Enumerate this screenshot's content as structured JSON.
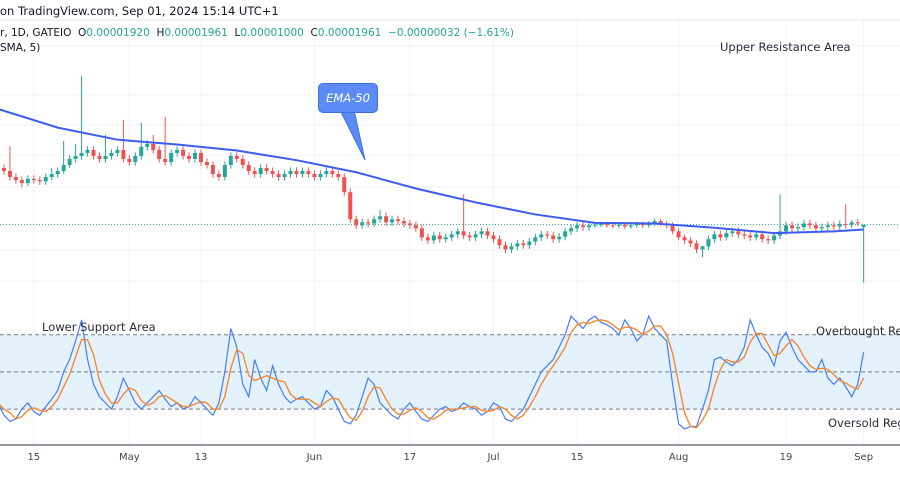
{
  "header": {
    "source_text": "on TradingView.com, Sep 01, 2024 15:14 UTC+1"
  },
  "legend": {
    "symbol_text": "r, 1D, GATEIO",
    "o_label": "O",
    "o_value": "0.00001920",
    "h_label": "H",
    "h_value": "0.00001961",
    "l_label": "L",
    "l_value": "0.00001000",
    "c_label": "C",
    "c_value": "0.00001961",
    "change": "−0.00000032 (−1.61%)",
    "indicator_text": "SMA, 5)"
  },
  "annotations": {
    "upper": "Upper Resistance Area",
    "lower": "Lower Support Area",
    "overbought": "Overbought Regi",
    "oversold": "Oversold Regi",
    "ema_callout": "EMA-50"
  },
  "colors": {
    "up": "#26a69a",
    "down": "#ef5350",
    "ema": "#3d5cf0",
    "stoch_k": "#4a7cf7",
    "stoch_d": "#f5892f",
    "band": "#e3f2fd",
    "last_price_line": "#26a69a"
  },
  "chart_data": [
    {
      "type": "candlestick",
      "interval": "1D",
      "last_date": "2024-09-01",
      "price_range": [
        6.28e-06,
        5.355e-05
      ],
      "x_ticks": [
        {
          "label": "15",
          "date": "2024-04-15"
        },
        {
          "label": "May",
          "date": "2024-05-01"
        },
        {
          "label": "13",
          "date": "2024-05-13"
        },
        {
          "label": "Jun",
          "date": "2024-06-01"
        },
        {
          "label": "17",
          "date": "2024-06-17"
        },
        {
          "label": "Jul",
          "date": "2024-07-01"
        },
        {
          "label": "15",
          "date": "2024-07-15"
        },
        {
          "label": "Aug",
          "date": "2024-08-01"
        },
        {
          "label": "19",
          "date": "2024-08-19"
        },
        {
          "label": "Sep",
          "date": "2024-09-01"
        }
      ],
      "last_price": 1.961e-05,
      "open": [
        2.95e-05,
        2.9e-05,
        2.85e-05,
        2.75e-05,
        2.7e-05,
        2.65e-05,
        2.72e-05,
        2.7e-05,
        2.68e-05,
        2.75e-05,
        2.8e-05,
        2.85e-05,
        2.95e-05,
        3.05e-05,
        3.1e-05,
        3.15e-05,
        3.2e-05,
        3.1e-05,
        3.05e-05,
        3.1e-05,
        3.15e-05,
        3.2e-05,
        3.05e-05,
        3e-05,
        3.1e-05,
        3.25e-05,
        3.3e-05,
        3.2e-05,
        3.05e-05,
        3e-05,
        3.15e-05,
        3.2e-05,
        3.1e-05,
        3.05e-05,
        3.15e-05,
        3e-05,
        2.95e-05,
        2.8e-05,
        2.75e-05,
        2.95e-05,
        3.1e-05,
        3.05e-05,
        2.95e-05,
        2.85e-05,
        2.8e-05,
        2.9e-05,
        2.85e-05,
        2.8e-05,
        2.75e-05,
        2.8e-05,
        2.85e-05,
        2.8e-05,
        2.85e-05,
        2.8e-05,
        2.75e-05,
        2.8e-05,
        2.85e-05,
        2.8e-05,
        2.75e-05,
        2.5e-05,
        2.05e-05,
        1.95e-05,
        2e-05,
        1.98e-05,
        2.05e-05,
        2.1e-05,
        2e-05,
        2.05e-05,
        2.02e-05,
        1.98e-05,
        1.95e-05,
        1.9e-05,
        1.75e-05,
        1.7e-05,
        1.78e-05,
        1.72e-05,
        1.75e-05,
        1.8e-05,
        1.85e-05,
        1.78e-05,
        1.75e-05,
        1.8e-05,
        1.85e-05,
        1.78e-05,
        1.72e-05,
        1.62e-05,
        1.55e-05,
        1.6e-05,
        1.65e-05,
        1.62e-05,
        1.68e-05,
        1.75e-05,
        1.8e-05,
        1.78e-05,
        1.72e-05,
        1.76e-05,
        1.85e-05,
        1.9e-05,
        1.95e-05,
        1.92e-05,
        1.95e-05,
        1.96e-05,
        1.97e-05,
        1.95e-05,
        1.94e-05,
        1.96e-05,
        1.93e-05,
        1.95e-05,
        1.97e-05,
        1.95e-05,
        1.98e-05,
        2.02e-05,
        1.98e-05,
        1.95e-05,
        1.85e-05,
        1.75e-05,
        1.7e-05,
        1.65e-05,
        1.55e-05,
        1.6e-05,
        1.72e-05,
        1.8e-05,
        1.75e-05,
        1.82e-05,
        1.85e-05,
        1.8e-05,
        1.78e-05,
        1.75e-05,
        1.8e-05,
        1.72e-05,
        1.7e-05,
        1.78e-05,
        1.85e-05,
        1.95e-05,
        1.9e-05,
        1.92e-05,
        1.98e-05,
        1.95e-05,
        1.9e-05,
        1.92e-05,
        1.95e-05,
        1.93e-05,
        1.97e-05,
        1.96e-05,
        2e-05,
        1.92e-05
      ],
      "high": [
        3.01e-05,
        2.96e-05,
        3.26e-05,
        2.81e-05,
        2.76e-05,
        2.78e-05,
        2.78e-05,
        2.76e-05,
        2.81e-05,
        2.9e-05,
        2.91e-05,
        3.35e-05,
        3.11e-05,
        3.3e-05,
        4.43e-05,
        3.26e-05,
        3.26e-05,
        3.16e-05,
        3.45e-05,
        3.21e-05,
        3.26e-05,
        3.7e-05,
        3.11e-05,
        3.16e-05,
        3.65e-05,
        3.36e-05,
        3.45e-05,
        3.26e-05,
        3.75e-05,
        3.21e-05,
        3.26e-05,
        3.26e-05,
        3.16e-05,
        3.21e-05,
        3.21e-05,
        3.06e-05,
        3.01e-05,
        2.86e-05,
        3.01e-05,
        3.16e-05,
        3.16e-05,
        3.11e-05,
        3.01e-05,
        2.91e-05,
        2.96e-05,
        2.96e-05,
        2.91e-05,
        2.86e-05,
        2.86e-05,
        2.91e-05,
        2.91e-05,
        2.91e-05,
        2.91e-05,
        2.86e-05,
        2.86e-05,
        2.91e-05,
        2.91e-05,
        2.86e-05,
        2.81e-05,
        2.56e-05,
        2.11e-05,
        2.06e-05,
        2.06e-05,
        2.11e-05,
        2.2e-05,
        2.16e-05,
        2.11e-05,
        2.11e-05,
        2.08e-05,
        2.04e-05,
        2.01e-05,
        1.96e-05,
        1.81e-05,
        1.84e-05,
        1.84e-05,
        1.81e-05,
        1.86e-05,
        1.91e-05,
        2.46e-05,
        1.84e-05,
        1.86e-05,
        1.91e-05,
        1.91e-05,
        1.84e-05,
        1.78e-05,
        1.68e-05,
        1.66e-05,
        1.71e-05,
        1.71e-05,
        1.74e-05,
        1.81e-05,
        1.86e-05,
        1.86e-05,
        1.84e-05,
        1.82e-05,
        1.91e-05,
        1.96e-05,
        2.01e-05,
        2.01e-05,
        2.01e-05,
        2e-05,
        2.01e-05,
        2.01e-05,
        1.99e-05,
        2e-05,
        2e-05,
        1.99e-05,
        2.01e-05,
        2.01e-05,
        2.02e-05,
        2.06e-05,
        2.06e-05,
        2.02e-05,
        2e-05,
        1.9e-05,
        1.8e-05,
        1.75e-05,
        1.7e-05,
        1.61e-05,
        1.78e-05,
        1.86e-05,
        1.86e-05,
        1.88e-05,
        1.91e-05,
        1.91e-05,
        1.86e-05,
        1.84e-05,
        1.86e-05,
        1.86e-05,
        1.78e-05,
        1.84e-05,
        2.46e-05,
        2.01e-05,
        2.01e-05,
        1.98e-05,
        2.04e-05,
        2.04e-05,
        2.01e-05,
        1.98e-05,
        2.01e-05,
        2.01e-05,
        2.03e-05,
        2.3e-05,
        2.04e-05,
        2.05e-05,
        1.961e-05
      ],
      "low": [
        2.84e-05,
        2.79e-05,
        2.69e-05,
        2.64e-05,
        2.58e-05,
        2.6e-05,
        2.64e-05,
        2.62e-05,
        2.62e-05,
        2.7e-05,
        2.74e-05,
        2.8e-05,
        2.9e-05,
        2.99e-05,
        3.04e-05,
        3.09e-05,
        3.04e-05,
        2.99e-05,
        2.99e-05,
        3.04e-05,
        3.09e-05,
        2.99e-05,
        2.94e-05,
        2.94e-05,
        3.04e-05,
        3.19e-05,
        3.14e-05,
        2.99e-05,
        2.94e-05,
        2.94e-05,
        3.09e-05,
        3.04e-05,
        2.99e-05,
        2.99e-05,
        2.94e-05,
        2.89e-05,
        2.74e-05,
        2.69e-05,
        2.69e-05,
        2.89e-05,
        2.99e-05,
        2.89e-05,
        2.79e-05,
        2.74e-05,
        2.74e-05,
        2.79e-05,
        2.74e-05,
        2.69e-05,
        2.69e-05,
        2.74e-05,
        2.74e-05,
        2.74e-05,
        2.74e-05,
        2.69e-05,
        2.69e-05,
        2.74e-05,
        2.74e-05,
        2.69e-05,
        2.44e-05,
        1.99e-05,
        1.89e-05,
        1.89e-05,
        1.92e-05,
        1.92e-05,
        1.99e-05,
        1.94e-05,
        1.94e-05,
        1.96e-05,
        1.92e-05,
        1.89e-05,
        1.84e-05,
        1.69e-05,
        1.64e-05,
        1.64e-05,
        1.66e-05,
        1.66e-05,
        1.69e-05,
        1.74e-05,
        1.72e-05,
        1.69e-05,
        1.69e-05,
        1.74e-05,
        1.72e-05,
        1.66e-05,
        1.56e-05,
        1.49e-05,
        1.49e-05,
        1.54e-05,
        1.56e-05,
        1.56e-05,
        1.62e-05,
        1.69e-05,
        1.72e-05,
        1.66e-05,
        1.66e-05,
        1.7e-05,
        1.79e-05,
        1.84e-05,
        1.86e-05,
        1.86e-05,
        1.91e-05,
        1.92e-05,
        1.91e-05,
        1.9e-05,
        1.9e-05,
        1.89e-05,
        1.89e-05,
        1.91e-05,
        1.91e-05,
        1.91e-05,
        1.94e-05,
        1.94e-05,
        1.9e-05,
        1.8e-05,
        1.7e-05,
        1.64e-05,
        1.59e-05,
        1.49e-05,
        1.42e-05,
        1.54e-05,
        1.66e-05,
        1.69e-05,
        1.7e-05,
        1.76e-05,
        1.74e-05,
        1.72e-05,
        1.69e-05,
        1.7e-05,
        1.66e-05,
        1.64e-05,
        1.64e-05,
        1.72e-05,
        1.79e-05,
        1.84e-05,
        1.84e-05,
        1.86e-05,
        1.89e-05,
        1.84e-05,
        1.84e-05,
        1.86e-05,
        1.87e-05,
        1.87e-05,
        1.9e-05,
        1.9e-05,
        1.94e-05,
        1e-05
      ],
      "close": [
        2.9e-05,
        2.85e-05,
        2.75e-05,
        2.7e-05,
        2.65e-05,
        2.72e-05,
        2.7e-05,
        2.68e-05,
        2.75e-05,
        2.8e-05,
        2.85e-05,
        2.95e-05,
        3.05e-05,
        3.1e-05,
        3.15e-05,
        3.2e-05,
        3.1e-05,
        3.05e-05,
        3.1e-05,
        3.15e-05,
        3.2e-05,
        3.05e-05,
        3e-05,
        3.1e-05,
        3.25e-05,
        3.3e-05,
        3.2e-05,
        3.05e-05,
        3e-05,
        3.15e-05,
        3.2e-05,
        3.1e-05,
        3.05e-05,
        3.15e-05,
        3e-05,
        2.95e-05,
        2.8e-05,
        2.75e-05,
        2.95e-05,
        3.1e-05,
        3.05e-05,
        2.95e-05,
        2.85e-05,
        2.8e-05,
        2.9e-05,
        2.85e-05,
        2.8e-05,
        2.75e-05,
        2.8e-05,
        2.85e-05,
        2.8e-05,
        2.85e-05,
        2.8e-05,
        2.75e-05,
        2.8e-05,
        2.85e-05,
        2.8e-05,
        2.75e-05,
        2.5e-05,
        2.05e-05,
        1.95e-05,
        2e-05,
        1.98e-05,
        2.05e-05,
        2.1e-05,
        2e-05,
        2.05e-05,
        2.02e-05,
        1.98e-05,
        1.95e-05,
        1.9e-05,
        1.75e-05,
        1.7e-05,
        1.78e-05,
        1.72e-05,
        1.75e-05,
        1.8e-05,
        1.85e-05,
        1.78e-05,
        1.75e-05,
        1.8e-05,
        1.85e-05,
        1.78e-05,
        1.72e-05,
        1.62e-05,
        1.55e-05,
        1.6e-05,
        1.65e-05,
        1.62e-05,
        1.68e-05,
        1.75e-05,
        1.8e-05,
        1.78e-05,
        1.72e-05,
        1.76e-05,
        1.85e-05,
        1.9e-05,
        1.95e-05,
        1.92e-05,
        1.95e-05,
        1.96e-05,
        1.97e-05,
        1.95e-05,
        1.94e-05,
        1.96e-05,
        1.93e-05,
        1.95e-05,
        1.97e-05,
        1.95e-05,
        1.98e-05,
        2.02e-05,
        1.98e-05,
        1.95e-05,
        1.85e-05,
        1.75e-05,
        1.7e-05,
        1.65e-05,
        1.55e-05,
        1.6e-05,
        1.72e-05,
        1.8e-05,
        1.75e-05,
        1.82e-05,
        1.85e-05,
        1.8e-05,
        1.78e-05,
        1.75e-05,
        1.8e-05,
        1.72e-05,
        1.7e-05,
        1.78e-05,
        1.85e-05,
        1.95e-05,
        1.9e-05,
        1.92e-05,
        1.98e-05,
        1.95e-05,
        1.9e-05,
        1.92e-05,
        1.95e-05,
        1.93e-05,
        1.97e-05,
        1.96e-05,
        2e-05,
        1.993e-05,
        1.961e-05
      ],
      "ema50": [
        {
          "date": "2024-04-09",
          "value": 3.88e-05
        },
        {
          "date": "2024-04-19",
          "value": 3.57e-05
        },
        {
          "date": "2024-04-29",
          "value": 3.37e-05
        },
        {
          "date": "2024-05-09",
          "value": 3.29e-05
        },
        {
          "date": "2024-05-19",
          "value": 3.19e-05
        },
        {
          "date": "2024-05-29",
          "value": 3.03e-05
        },
        {
          "date": "2024-06-08",
          "value": 2.83e-05
        },
        {
          "date": "2024-06-18",
          "value": 2.56e-05
        },
        {
          "date": "2024-06-28",
          "value": 2.33e-05
        },
        {
          "date": "2024-07-08",
          "value": 2.13e-05
        },
        {
          "date": "2024-07-18",
          "value": 1.99e-05
        },
        {
          "date": "2024-07-28",
          "value": 1.98e-05
        },
        {
          "date": "2024-08-07",
          "value": 1.91e-05
        },
        {
          "date": "2024-08-17",
          "value": 1.82e-05
        },
        {
          "date": "2024-08-27",
          "value": 1.85e-05
        },
        {
          "date": "2024-09-01",
          "value": 1.88e-05
        }
      ]
    },
    {
      "type": "line",
      "range": [
        -9,
        104
      ],
      "levels": [
        80,
        50,
        20
      ],
      "k": [
        25,
        15,
        10,
        12,
        20,
        25,
        18,
        15,
        22,
        28,
        35,
        50,
        60,
        75,
        92,
        60,
        40,
        30,
        25,
        20,
        30,
        45,
        35,
        25,
        20,
        25,
        30,
        35,
        28,
        22,
        25,
        20,
        22,
        30,
        25,
        20,
        15,
        25,
        50,
        85,
        70,
        40,
        30,
        60,
        45,
        35,
        55,
        40,
        30,
        25,
        28,
        30,
        25,
        20,
        22,
        35,
        30,
        20,
        10,
        8,
        15,
        30,
        45,
        40,
        25,
        20,
        15,
        12,
        20,
        25,
        18,
        12,
        10,
        15,
        20,
        22,
        18,
        20,
        25,
        22,
        20,
        15,
        18,
        25,
        22,
        12,
        10,
        15,
        20,
        30,
        40,
        50,
        55,
        60,
        70,
        80,
        95,
        90,
        85,
        92,
        95,
        90,
        88,
        85,
        80,
        92,
        85,
        75,
        80,
        95,
        85,
        80,
        75,
        40,
        8,
        4,
        6,
        6,
        20,
        35,
        60,
        62,
        58,
        55,
        60,
        70,
        92,
        80,
        70,
        65,
        55,
        75,
        82,
        70,
        60,
        55,
        50,
        50,
        60,
        45,
        40,
        45,
        38,
        30,
        40,
        66
      ],
      "d": [
        25,
        20,
        17,
        12,
        14,
        19,
        21,
        19,
        18,
        22,
        28,
        38,
        48,
        62,
        76,
        76,
        64,
        43,
        32,
        25,
        25,
        32,
        37,
        35,
        27,
        23,
        25,
        30,
        31,
        28,
        25,
        22,
        22,
        24,
        26,
        25,
        20,
        20,
        30,
        53,
        68,
        65,
        47,
        43,
        45,
        47,
        45,
        43,
        42,
        32,
        28,
        28,
        28,
        25,
        22,
        26,
        29,
        28,
        20,
        13,
        11,
        18,
        30,
        38,
        37,
        28,
        20,
        16,
        16,
        19,
        21,
        18,
        13,
        12,
        15,
        19,
        20,
        20,
        21,
        22,
        22,
        19,
        18,
        19,
        22,
        20,
        15,
        12,
        15,
        22,
        30,
        40,
        48,
        55,
        62,
        70,
        82,
        88,
        90,
        89,
        91,
        92,
        91,
        88,
        84,
        86,
        86,
        84,
        80,
        83,
        87,
        87,
        80,
        65,
        41,
        17,
        6,
        5,
        11,
        20,
        38,
        52,
        60,
        58,
        58,
        62,
        74,
        81,
        81,
        72,
        63,
        65,
        71,
        76,
        71,
        62,
        55,
        52,
        53,
        52,
        48,
        43,
        41,
        38,
        36,
        45
      ]
    }
  ]
}
